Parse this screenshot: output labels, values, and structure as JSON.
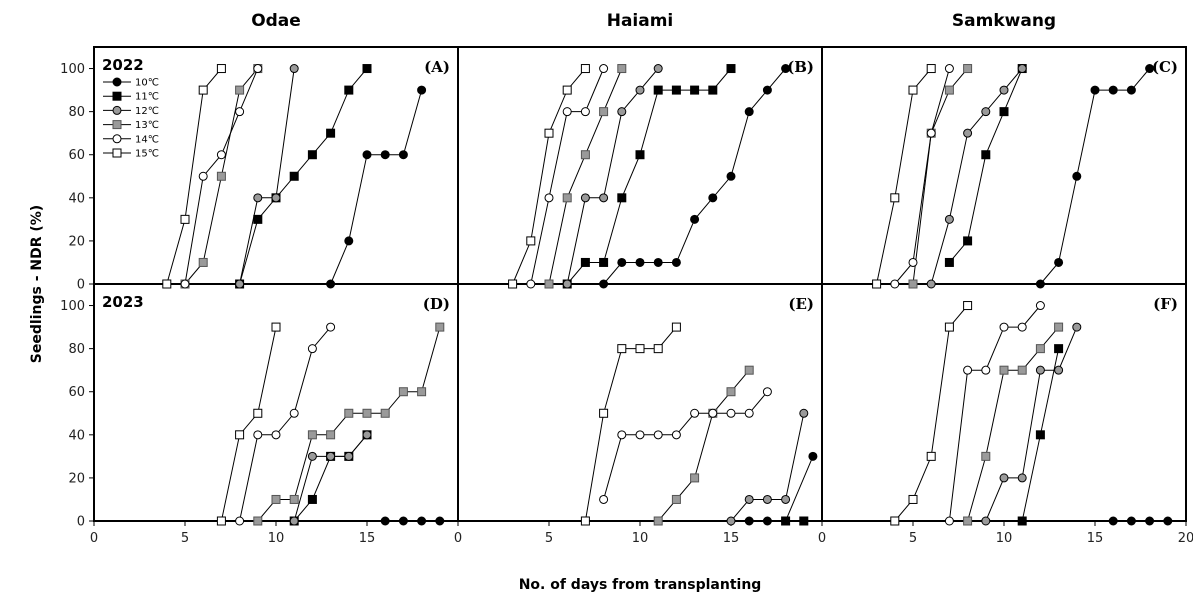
{
  "chart_data": {
    "type": "line",
    "column_titles": [
      "Odae",
      "Haiami",
      "Samkwang"
    ],
    "row_labels": [
      "2022",
      "2023"
    ],
    "xlabel": "No. of days from transplanting",
    "ylabel": "Seedlings - NDR (%)",
    "xlim": [
      0,
      20
    ],
    "ylim": [
      0,
      110
    ],
    "x_ticks": [
      0,
      5,
      10,
      15,
      20
    ],
    "y_ticks": [
      0,
      20,
      40,
      60,
      80,
      100
    ],
    "legend": {
      "placement": "top-left",
      "entries": [
        {
          "name": "10℃",
          "marker": "circle",
          "fill": "#000000"
        },
        {
          "name": "11℃",
          "marker": "square",
          "fill": "#000000"
        },
        {
          "name": "12℃",
          "marker": "circle",
          "fill": "#9a9a9a"
        },
        {
          "name": "13℃",
          "marker": "square",
          "fill": "#9a9a9a"
        },
        {
          "name": "14℃",
          "marker": "circle",
          "fill": "#ffffff"
        },
        {
          "name": "15℃",
          "marker": "square",
          "fill": "#ffffff"
        }
      ]
    },
    "panels": [
      {
        "label": "(A)",
        "year": "2022",
        "row": 0,
        "col": 0,
        "series": [
          {
            "name": "10℃",
            "x": [
              13,
              14,
              15,
              16,
              17,
              18
            ],
            "y": [
              0,
              20,
              60,
              60,
              60,
              90
            ]
          },
          {
            "name": "11℃",
            "x": [
              8,
              9,
              10,
              11,
              12,
              13,
              14,
              15
            ],
            "y": [
              0,
              30,
              40,
              50,
              60,
              70,
              90,
              100
            ]
          },
          {
            "name": "12℃",
            "x": [
              8,
              9,
              10,
              11
            ],
            "y": [
              0,
              40,
              40,
              100
            ]
          },
          {
            "name": "13℃",
            "x": [
              5,
              6,
              7,
              8,
              9
            ],
            "y": [
              0,
              10,
              50,
              90,
              100
            ]
          },
          {
            "name": "14℃",
            "x": [
              5,
              6,
              7,
              8,
              9
            ],
            "y": [
              0,
              50,
              60,
              80,
              100
            ]
          },
          {
            "name": "15℃",
            "x": [
              4,
              5,
              6,
              7
            ],
            "y": [
              0,
              30,
              90,
              100
            ]
          }
        ]
      },
      {
        "label": "(B)",
        "year": "",
        "row": 0,
        "col": 1,
        "series": [
          {
            "name": "10℃",
            "x": [
              8,
              9,
              10,
              11,
              12,
              13,
              14,
              15,
              16,
              17,
              18
            ],
            "y": [
              0,
              10,
              10,
              10,
              10,
              30,
              40,
              50,
              80,
              90,
              100
            ]
          },
          {
            "name": "11℃",
            "x": [
              6,
              7,
              8,
              9,
              10,
              11,
              12,
              13,
              14,
              15
            ],
            "y": [
              0,
              10,
              10,
              40,
              60,
              90,
              90,
              90,
              90,
              100
            ]
          },
          {
            "name": "12℃",
            "x": [
              6,
              7,
              8,
              9,
              10,
              11
            ],
            "y": [
              0,
              40,
              40,
              80,
              90,
              100
            ]
          },
          {
            "name": "13℃",
            "x": [
              5,
              6,
              7,
              8,
              9
            ],
            "y": [
              0,
              40,
              60,
              80,
              100
            ]
          },
          {
            "name": "14℃",
            "x": [
              4,
              5,
              6,
              7,
              8
            ],
            "y": [
              0,
              40,
              80,
              80,
              100
            ]
          },
          {
            "name": "15℃",
            "x": [
              3,
              4,
              5,
              6,
              7
            ],
            "y": [
              0,
              20,
              70,
              90,
              100
            ]
          }
        ]
      },
      {
        "label": "(C)",
        "year": "",
        "row": 0,
        "col": 2,
        "series": [
          {
            "name": "10℃",
            "x": [
              12,
              13,
              14,
              15,
              16,
              17,
              18
            ],
            "y": [
              0,
              10,
              50,
              90,
              90,
              90,
              100
            ]
          },
          {
            "name": "11℃",
            "x": [
              7,
              8,
              9,
              10,
              11
            ],
            "y": [
              10,
              20,
              60,
              80,
              100
            ]
          },
          {
            "name": "12℃",
            "x": [
              6,
              7,
              8,
              9,
              10,
              11
            ],
            "y": [
              0,
              30,
              70,
              80,
              90,
              100
            ]
          },
          {
            "name": "13℃",
            "x": [
              5,
              6,
              7,
              8
            ],
            "y": [
              0,
              70,
              90,
              100
            ]
          },
          {
            "name": "14℃",
            "x": [
              4,
              5,
              6,
              7
            ],
            "y": [
              0,
              10,
              70,
              100
            ]
          },
          {
            "name": "15℃",
            "x": [
              3,
              4,
              5,
              6
            ],
            "y": [
              0,
              40,
              90,
              100
            ]
          }
        ]
      },
      {
        "label": "(D)",
        "year": "2023",
        "row": 1,
        "col": 0,
        "series": [
          {
            "name": "10℃",
            "x": [
              16,
              17,
              18,
              19
            ],
            "y": [
              0,
              0,
              0,
              0
            ]
          },
          {
            "name": "11℃",
            "x": [
              11,
              12,
              13,
              14,
              15
            ],
            "y": [
              0,
              10,
              30,
              30,
              40
            ]
          },
          {
            "name": "12℃",
            "x": [
              11,
              12,
              13,
              14,
              15
            ],
            "y": [
              0,
              30,
              30,
              30,
              40
            ]
          },
          {
            "name": "13℃",
            "x": [
              9,
              10,
              11,
              12,
              13,
              14,
              15,
              16,
              17,
              18,
              19
            ],
            "y": [
              0,
              10,
              10,
              40,
              40,
              50,
              50,
              50,
              60,
              60,
              90
            ]
          },
          {
            "name": "14℃",
            "x": [
              8,
              9,
              10,
              11,
              12,
              13
            ],
            "y": [
              0,
              40,
              40,
              50,
              80,
              90
            ]
          },
          {
            "name": "15℃",
            "x": [
              7,
              8,
              9,
              10
            ],
            "y": [
              0,
              40,
              50,
              90
            ]
          }
        ]
      },
      {
        "label": "(E)",
        "year": "",
        "row": 1,
        "col": 1,
        "series": [
          {
            "name": "10℃",
            "x": [
              16,
              17,
              18,
              19.5
            ],
            "y": [
              0,
              0,
              0,
              30
            ]
          },
          {
            "name": "11℃",
            "x": [
              18,
              19
            ],
            "y": [
              0,
              0
            ]
          },
          {
            "name": "12℃",
            "x": [
              15,
              16,
              17,
              18,
              19
            ],
            "y": [
              0,
              10,
              10,
              10,
              50
            ]
          },
          {
            "name": "13℃",
            "x": [
              11,
              12,
              13,
              14,
              15,
              16
            ],
            "y": [
              0,
              10,
              20,
              50,
              60,
              70
            ]
          },
          {
            "name": "14℃",
            "x": [
              8,
              9,
              10,
              11,
              12,
              13,
              14,
              15,
              16,
              17
            ],
            "y": [
              10,
              40,
              40,
              40,
              40,
              50,
              50,
              50,
              50,
              60
            ]
          },
          {
            "name": "15℃",
            "x": [
              7,
              8,
              9,
              10,
              11,
              12
            ],
            "y": [
              0,
              50,
              80,
              80,
              80,
              90
            ]
          }
        ]
      },
      {
        "label": "(F)",
        "year": "",
        "row": 1,
        "col": 2,
        "series": [
          {
            "name": "10℃",
            "x": [
              16,
              17,
              18,
              19,
              20
            ],
            "y": [
              0,
              0,
              0,
              0,
              0
            ]
          },
          {
            "name": "11℃",
            "x": [
              11,
              12,
              13
            ],
            "y": [
              0,
              40,
              80
            ]
          },
          {
            "name": "12℃",
            "x": [
              9,
              10,
              11,
              12,
              13,
              14
            ],
            "y": [
              0,
              20,
              20,
              70,
              70,
              90
            ]
          },
          {
            "name": "13℃",
            "x": [
              8,
              9,
              10,
              11,
              12,
              13
            ],
            "y": [
              0,
              30,
              70,
              70,
              80,
              90
            ]
          },
          {
            "name": "14℃",
            "x": [
              7,
              8,
              9,
              10,
              11,
              12
            ],
            "y": [
              0,
              70,
              70,
              90,
              90,
              100
            ]
          },
          {
            "name": "15℃",
            "x": [
              4,
              5,
              6,
              7,
              8
            ],
            "y": [
              0,
              10,
              30,
              90,
              100
            ]
          }
        ]
      }
    ]
  }
}
